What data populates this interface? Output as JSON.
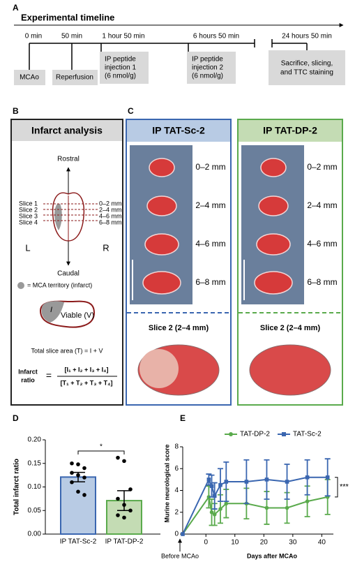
{
  "panel_a": {
    "label": "A",
    "title": "Experimental timeline",
    "times": [
      "0 min",
      "50 min",
      "1 hour 50 min",
      "6 hours 50 min",
      "24 hours 50 min"
    ],
    "boxes": [
      [
        "MCAo"
      ],
      [
        "Reperfusion"
      ],
      [
        "IP peptide",
        "injection 1",
        "(6 nmol/g)"
      ],
      [
        "IP peptide",
        "injection 2",
        "(6 nmol/g)"
      ],
      [
        "Sacrifice, slicing,",
        "and TTC staining"
      ]
    ]
  },
  "panel_b": {
    "label": "B",
    "title": "Infarct analysis",
    "rostral": "Rostral",
    "caudal": "Caudal",
    "slices": [
      "Slice 1",
      "Slice 2",
      "Slice 3",
      "Slice 4"
    ],
    "ranges": [
      "0–2 mm",
      "2–4 mm",
      "4–6 mm",
      "6–8 mm"
    ],
    "left": "L",
    "right": "R",
    "legend": "= MCA territory (infarct)",
    "infarct_symbol": "I",
    "viable": "Viable (V)",
    "total": "Total slice area (T) = I + V",
    "ratio_label": [
      "Infarct",
      "ratio"
    ],
    "equals": "=",
    "numerator": "[I₁ + I₂ + I₃ + I₄]",
    "denominator": "[T₁ + T₂ + T₃ + T₄]"
  },
  "panel_c": {
    "label": "C",
    "groups": [
      {
        "title": "IP TAT-Sc-2",
        "ranges": [
          "0–2 mm",
          "2–4 mm",
          "4–6 mm",
          "6–8 mm"
        ],
        "slice_title": "Slice 2 (2–4 mm)"
      },
      {
        "title": "IP TAT-DP-2",
        "ranges": [
          "0–2 mm",
          "2–4 mm",
          "4–6 mm",
          "6–8 mm"
        ],
        "slice_title": "Slice 2 (2–4 mm)"
      }
    ]
  },
  "chart_data": [
    {
      "type": "bar",
      "label": "D",
      "ylabel": "Total infarct ratio",
      "categories": [
        "IP TAT-Sc-2",
        "IP TAT-DP-2"
      ],
      "values": [
        0.121,
        0.071
      ],
      "errors": [
        0.01,
        0.021
      ],
      "colors": [
        "#3a66b0",
        "#5aaa4c"
      ],
      "fills": [
        "#b8cbe4",
        "#c4dcb4"
      ],
      "points": [
        [
          0.15,
          0.148,
          0.14,
          0.13,
          0.125,
          0.12,
          0.11,
          0.09,
          0.083
        ],
        [
          0.162,
          0.155,
          0.095,
          0.075,
          0.062,
          0.05,
          0.04,
          0.035
        ]
      ],
      "ylim": [
        0,
        0.2
      ],
      "yticks": [
        {
          "value": 0,
          "label": "0.00"
        },
        {
          "value": 0.05,
          "label": "0.05"
        },
        {
          "value": 0.1,
          "label": "0.10"
        },
        {
          "value": 0.15,
          "label": "0.15"
        },
        {
          "value": 0.2,
          "label": "0.20"
        }
      ],
      "significance": "*"
    },
    {
      "type": "line",
      "label": "E",
      "ylabel": "Murine neurological score",
      "xlabel": "Days after MCAo",
      "annotation": "Before MCAo",
      "significance": "***",
      "x": [
        -8,
        1,
        2,
        3,
        5,
        7,
        14,
        21,
        28,
        35,
        42
      ],
      "xlim": [
        -8,
        44
      ],
      "xticks": [
        0,
        10,
        20,
        30,
        40
      ],
      "ylim": [
        0,
        8
      ],
      "yticks": [
        0,
        2,
        4,
        6,
        8
      ],
      "series": [
        {
          "name": "TAT-DP-2",
          "color": "#5aaa4c",
          "values": [
            0,
            3.4,
            2.0,
            1.8,
            2.3,
            2.8,
            2.8,
            2.4,
            2.4,
            3.0,
            3.4
          ],
          "errors": [
            0,
            1.0,
            1.2,
            1.0,
            1.3,
            1.3,
            1.4,
            1.5,
            1.4,
            1.4,
            1.6
          ]
        },
        {
          "name": "TAT-Sc-2",
          "color": "#3a66b0",
          "values": [
            0,
            5.0,
            4.4,
            3.5,
            4.5,
            4.8,
            4.8,
            5.0,
            4.8,
            5.2,
            5.2
          ],
          "errors": [
            0,
            0.5,
            1.0,
            1.2,
            1.5,
            1.8,
            2.0,
            1.8,
            1.6,
            1.6,
            1.7
          ]
        }
      ]
    }
  ]
}
